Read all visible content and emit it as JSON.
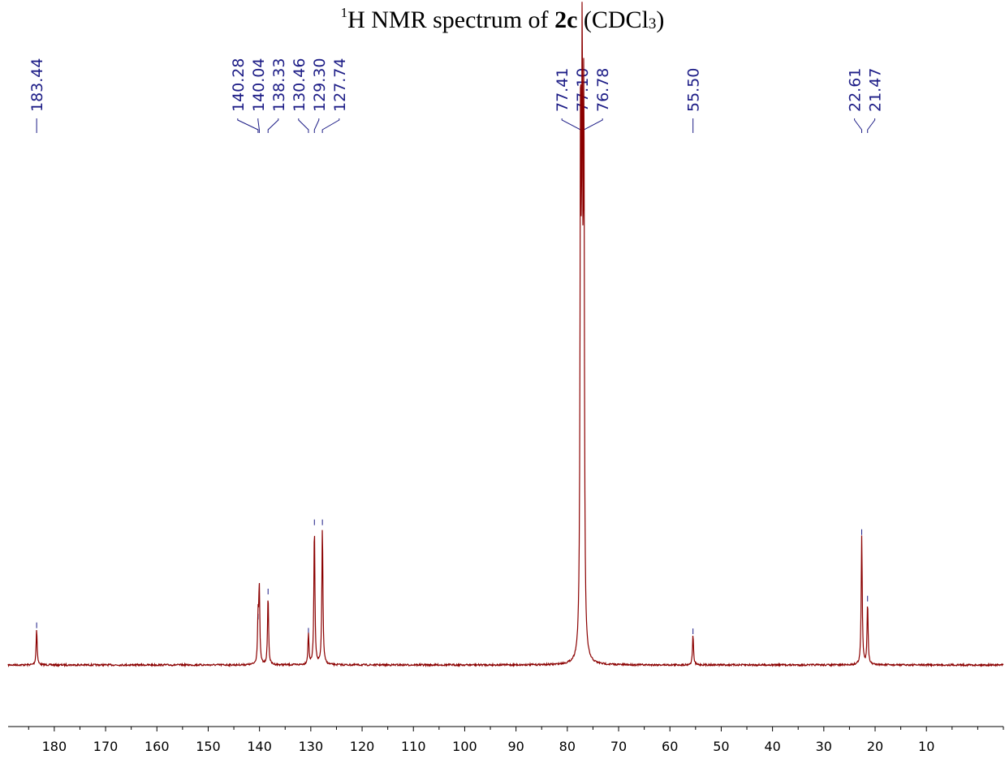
{
  "title": {
    "superscript": "1",
    "prefix": "H NMR spectrum of ",
    "compound": "2c",
    "solvent_open": " (CDCl",
    "subscript": "3",
    "solvent_close": ")"
  },
  "chart_data": {
    "type": "line",
    "x_axis": {
      "reversed": true,
      "range": [
        -5,
        189
      ],
      "major_ticks": [
        180,
        170,
        160,
        150,
        140,
        130,
        120,
        110,
        100,
        90,
        80,
        70,
        60,
        50,
        40,
        30,
        20,
        10
      ],
      "minor_step": 5,
      "xlabel": ""
    },
    "y_axis": {
      "visible": false,
      "ylabel": ""
    },
    "grid": false,
    "colors": {
      "spectrum": "#8b0000",
      "labels": "#1c1c86",
      "axis": "#000000"
    },
    "peak_labels": [
      {
        "group": "g1",
        "labels": [
          "183.44"
        ]
      },
      {
        "group": "g2",
        "labels": [
          "140.28",
          "140.04",
          "138.33",
          "130.46",
          "129.30",
          "127.74"
        ]
      },
      {
        "group": "g3",
        "labels": [
          "77.41",
          "77.10",
          "76.78"
        ]
      },
      {
        "group": "g4",
        "labels": [
          "55.50"
        ]
      },
      {
        "group": "g5",
        "labels": [
          "22.61",
          "21.47"
        ]
      }
    ],
    "peaks": [
      {
        "ppm": 183.44,
        "intensity": 0.066
      },
      {
        "ppm": 140.28,
        "intensity": 0.082
      },
      {
        "ppm": 140.04,
        "intensity": 0.136
      },
      {
        "ppm": 138.33,
        "intensity": 0.128
      },
      {
        "ppm": 130.46,
        "intensity": 0.056
      },
      {
        "ppm": 129.3,
        "intensity": 0.255
      },
      {
        "ppm": 127.74,
        "intensity": 0.255
      },
      {
        "ppm": 77.41,
        "intensity": 0.98
      },
      {
        "ppm": 77.1,
        "intensity": 1.0
      },
      {
        "ppm": 76.78,
        "intensity": 0.98
      },
      {
        "ppm": 55.5,
        "intensity": 0.055
      },
      {
        "ppm": 22.61,
        "intensity": 0.237
      },
      {
        "ppm": 21.47,
        "intensity": 0.115
      }
    ]
  }
}
